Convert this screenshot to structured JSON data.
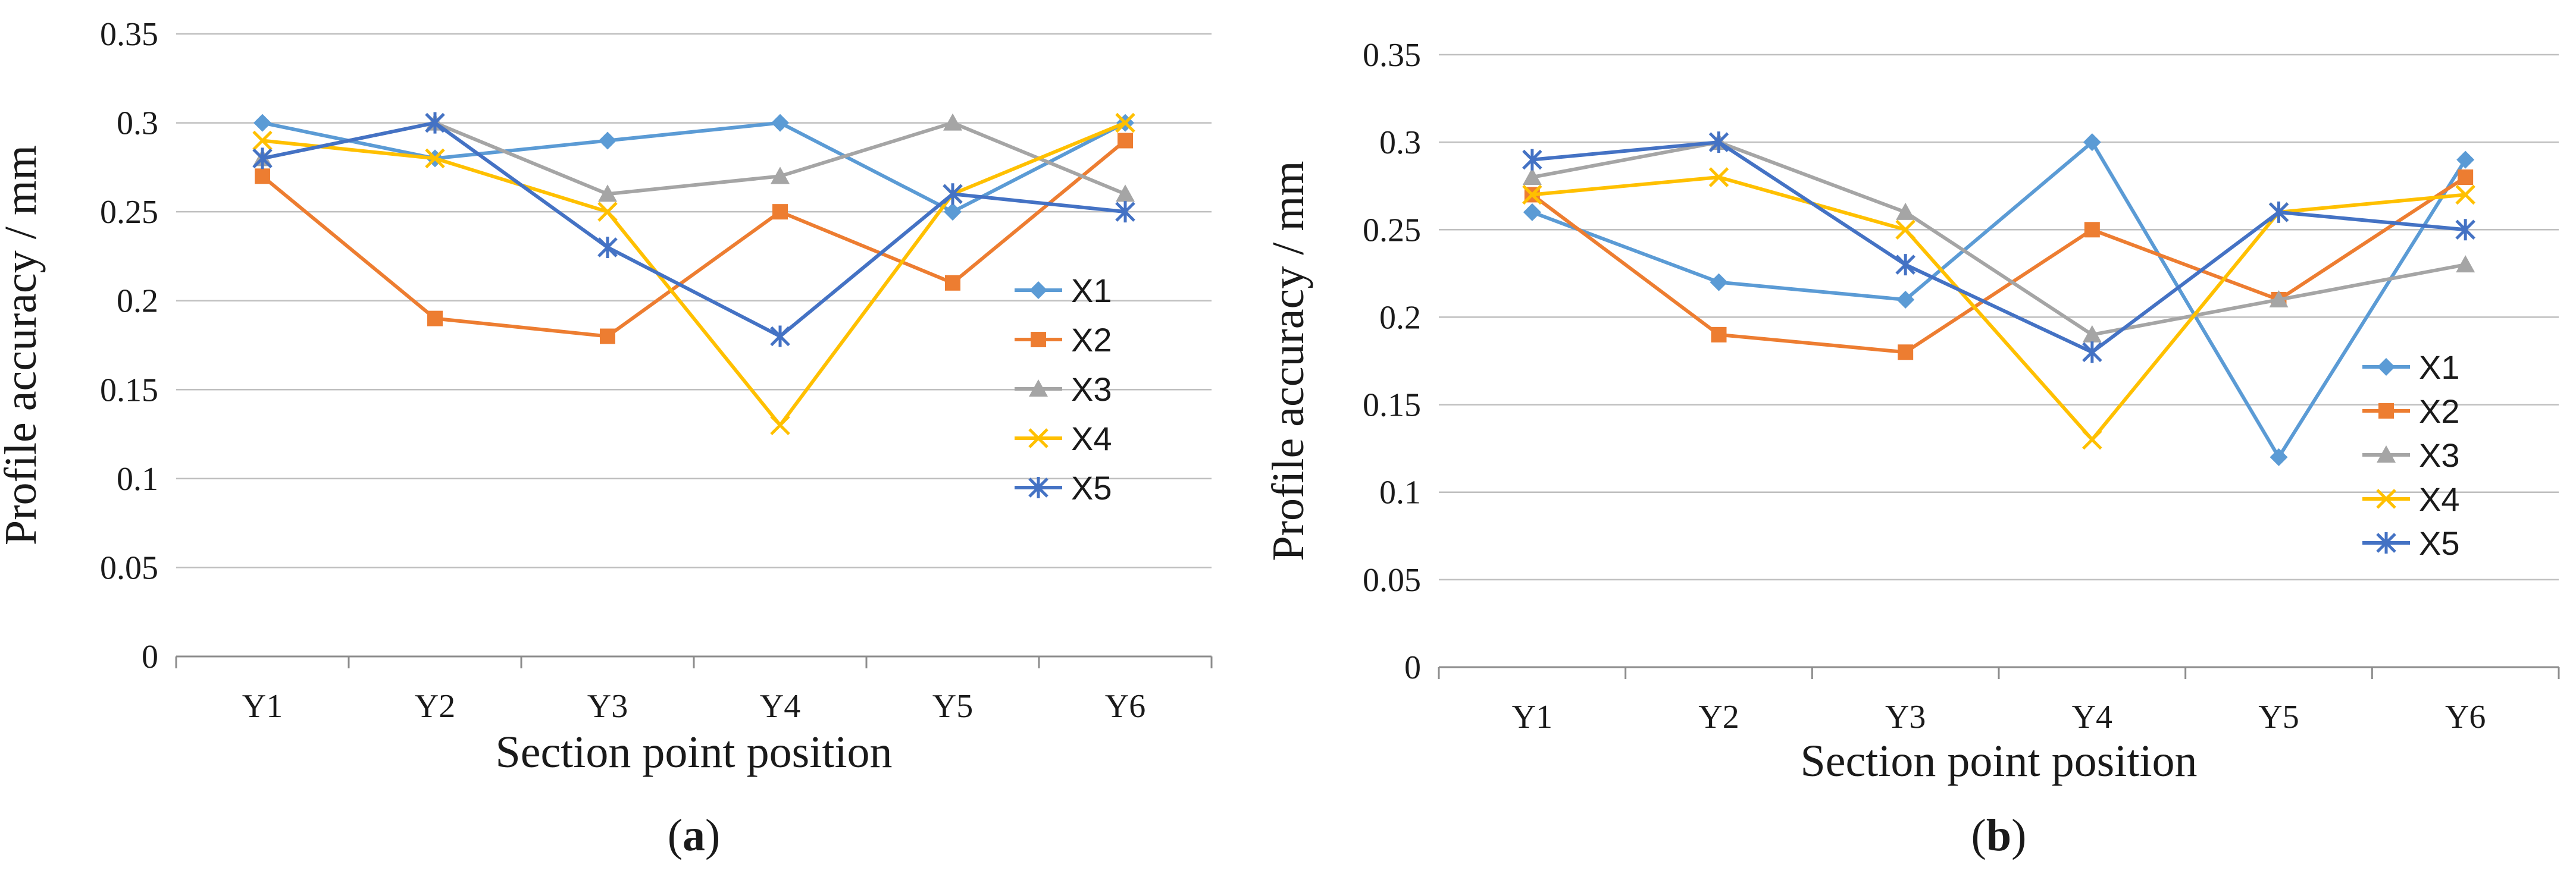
{
  "chart_data": [
    {
      "type": "line",
      "panel_label": "a",
      "categories": [
        "Y1",
        "Y2",
        "Y3",
        "Y4",
        "Y5",
        "Y6"
      ],
      "xlabel": "Section point position",
      "ylabel": "Profile accuracy / mm",
      "ylim": [
        0,
        0.35
      ],
      "yticks": [
        "0",
        "0.05",
        "0.1",
        "0.15",
        "0.2",
        "0.25",
        "0.3",
        "0.35"
      ],
      "legend_position": "right",
      "grid": true,
      "series": [
        {
          "name": "X1",
          "color": "#5B9BD5",
          "marker": "diamond",
          "values": [
            0.3,
            0.28,
            0.29,
            0.3,
            0.25,
            0.3
          ]
        },
        {
          "name": "X2",
          "color": "#ED7D31",
          "marker": "square",
          "values": [
            0.27,
            0.19,
            0.18,
            0.25,
            0.21,
            0.29
          ]
        },
        {
          "name": "X3",
          "color": "#A5A5A5",
          "marker": "triangle",
          "values": [
            0.28,
            0.3,
            0.26,
            0.27,
            0.3,
            0.26
          ]
        },
        {
          "name": "X4",
          "color": "#FFC000",
          "marker": "x",
          "values": [
            0.29,
            0.28,
            0.25,
            0.13,
            0.26,
            0.3
          ]
        },
        {
          "name": "X5",
          "color": "#4472C4",
          "marker": "star",
          "values": [
            0.28,
            0.3,
            0.23,
            0.18,
            0.26,
            0.25
          ]
        }
      ]
    },
    {
      "type": "line",
      "panel_label": "b",
      "categories": [
        "Y1",
        "Y2",
        "Y3",
        "Y4",
        "Y5",
        "Y6"
      ],
      "xlabel": "Section point position",
      "ylabel": "Profile accuracy / mm",
      "ylim": [
        0,
        0.35
      ],
      "yticks": [
        "0",
        "0.05",
        "0.1",
        "0.15",
        "0.2",
        "0.25",
        "0.3",
        "0.35"
      ],
      "legend_position": "right",
      "grid": true,
      "series": [
        {
          "name": "X1",
          "color": "#5B9BD5",
          "marker": "diamond",
          "values": [
            0.26,
            0.22,
            0.21,
            0.3,
            0.12,
            0.29
          ]
        },
        {
          "name": "X2",
          "color": "#ED7D31",
          "marker": "square",
          "values": [
            0.27,
            0.19,
            0.18,
            0.25,
            0.21,
            0.28
          ]
        },
        {
          "name": "X3",
          "color": "#A5A5A5",
          "marker": "triangle",
          "values": [
            0.28,
            0.3,
            0.26,
            0.19,
            0.21,
            0.23
          ]
        },
        {
          "name": "X4",
          "color": "#FFC000",
          "marker": "x",
          "values": [
            0.27,
            0.28,
            0.25,
            0.13,
            0.26,
            0.27
          ]
        },
        {
          "name": "X5",
          "color": "#4472C4",
          "marker": "star",
          "values": [
            0.29,
            0.3,
            0.23,
            0.18,
            0.26,
            0.25
          ]
        }
      ]
    }
  ]
}
